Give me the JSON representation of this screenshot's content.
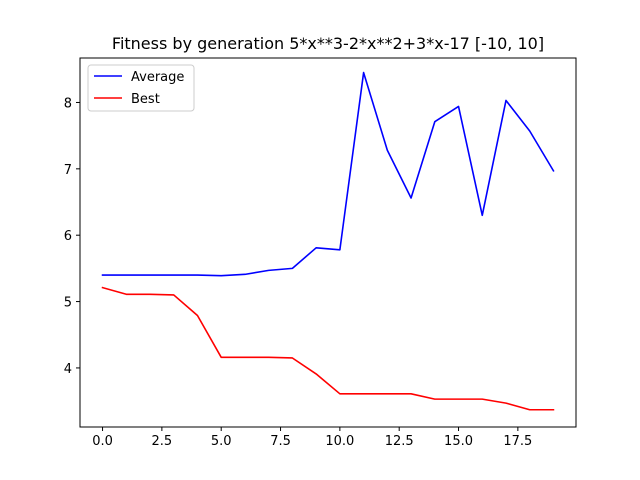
{
  "chart_data": {
    "type": "line",
    "title": "Fitness by generation 5*x**3-2*x**2+3*x-17 [-10, 10]",
    "xlabel": "",
    "ylabel": "",
    "xlim": [
      -0.95,
      19.95
    ],
    "ylim": [
      3.11,
      8.67
    ],
    "x_ticks": [
      {
        "value": 0,
        "label": "0.0"
      },
      {
        "value": 2.5,
        "label": "2.5"
      },
      {
        "value": 5,
        "label": "5.0"
      },
      {
        "value": 7.5,
        "label": "7.5"
      },
      {
        "value": 10,
        "label": "10.0"
      },
      {
        "value": 12.5,
        "label": "12.5"
      },
      {
        "value": 15,
        "label": "15.0"
      },
      {
        "value": 17.5,
        "label": "17.5"
      }
    ],
    "y_ticks": [
      {
        "value": 4,
        "label": "4"
      },
      {
        "value": 5,
        "label": "5"
      },
      {
        "value": 6,
        "label": "6"
      },
      {
        "value": 7,
        "label": "7"
      },
      {
        "value": 8,
        "label": "8"
      }
    ],
    "grid": false,
    "legend_position": "top-left",
    "x": [
      0,
      1,
      2,
      3,
      4,
      5,
      6,
      7,
      8,
      9,
      10,
      11,
      12,
      13,
      14,
      15,
      16,
      17,
      18,
      19
    ],
    "series": [
      {
        "name": "Average",
        "color": "#0000ff",
        "values": [
          5.4,
          5.4,
          5.4,
          5.4,
          5.4,
          5.39,
          5.41,
          5.47,
          5.5,
          5.81,
          5.78,
          8.45,
          7.28,
          6.56,
          7.71,
          7.94,
          6.3,
          8.03,
          7.57,
          6.97
        ]
      },
      {
        "name": "Best",
        "color": "#ff0000",
        "values": [
          5.21,
          5.11,
          5.11,
          5.1,
          4.79,
          4.16,
          4.16,
          4.16,
          4.15,
          3.91,
          3.61,
          3.61,
          3.61,
          3.61,
          3.53,
          3.53,
          3.53,
          3.47,
          3.37,
          3.37
        ]
      }
    ]
  }
}
